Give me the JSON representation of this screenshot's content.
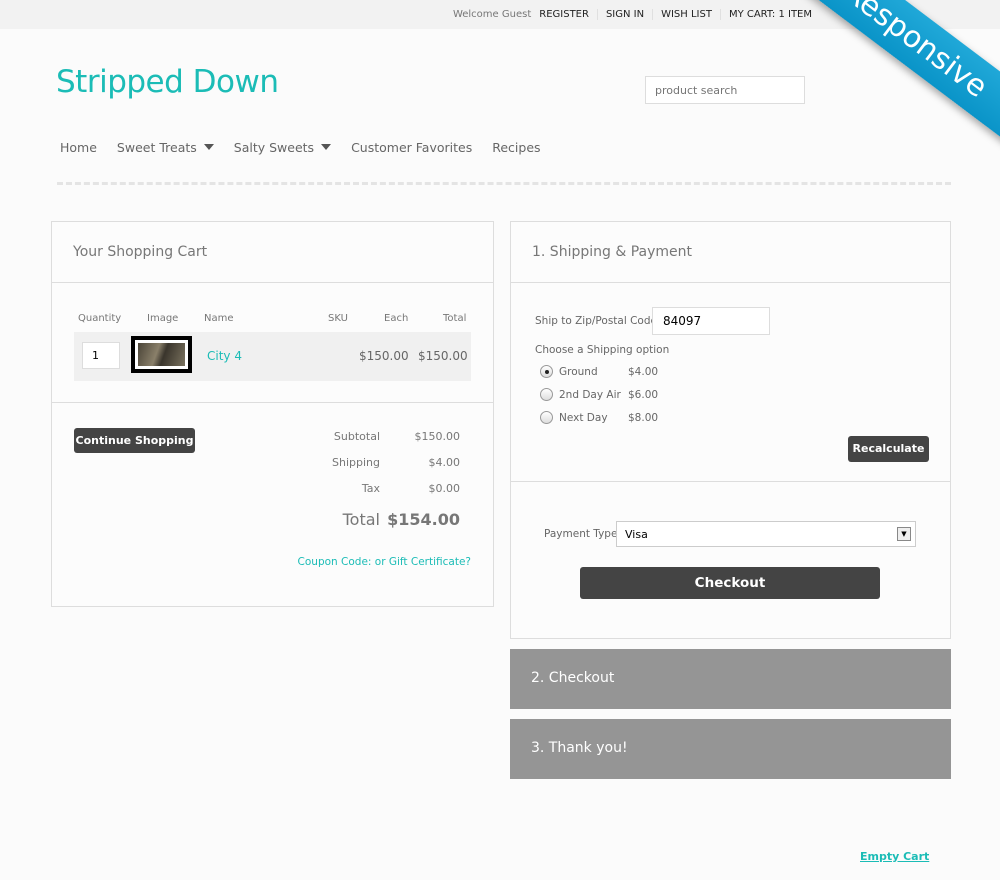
{
  "topbar": {
    "welcome": "Welcome Guest",
    "register": "REGISTER",
    "sign_in": "SIGN IN",
    "wish_list": "WISH LIST",
    "cart": "MY CART: 1 ITEM"
  },
  "ribbon": "Responsive",
  "logo": "Stripped Down",
  "search": {
    "placeholder": "product search"
  },
  "nav": [
    {
      "label": "Home"
    },
    {
      "label": "Sweet Treats"
    },
    {
      "label": "Salty Sweets"
    },
    {
      "label": "Customer Favorites"
    },
    {
      "label": "Recipes"
    }
  ],
  "cart": {
    "title": "Your Shopping Cart",
    "columns": [
      "Quantity",
      "Image",
      "Name",
      "SKU",
      "Each",
      "Total"
    ],
    "items": [
      {
        "quantity": "1",
        "name": "City 4",
        "sku": "",
        "each": "$150.00",
        "total": "$150.00"
      }
    ],
    "continue_label": "Continue Shopping",
    "subtotal_label": "Subtotal",
    "subtotal": "$150.00",
    "shipping_label": "Shipping",
    "shipping": "$4.00",
    "tax_label": "Tax",
    "tax": "$0.00",
    "total_label": "Total",
    "total": "$154.00",
    "coupon": "Coupon Code: or Gift Certificate?"
  },
  "shipping": {
    "title": "1. Shipping & Payment",
    "zip_label": "Ship to Zip/Postal Code",
    "zip": "84097",
    "option_label": "Choose a Shipping option",
    "options": [
      {
        "name": "Ground",
        "price": "$4.00",
        "selected": true
      },
      {
        "name": "2nd Day Air",
        "price": "$6.00",
        "selected": false
      },
      {
        "name": "Next Day",
        "price": "$8.00",
        "selected": false
      }
    ],
    "recalculate": "Recalculate",
    "payment_label": "Payment Type",
    "payment": "Visa",
    "checkout": "Checkout"
  },
  "steps": [
    "2. Checkout",
    "3. Thank you!"
  ],
  "empty_cart": "Empty Cart",
  "colors": {
    "accent": "#1bbcb6",
    "ribbon": "#0a94c8",
    "button": "#444444",
    "step": "#959595"
  }
}
